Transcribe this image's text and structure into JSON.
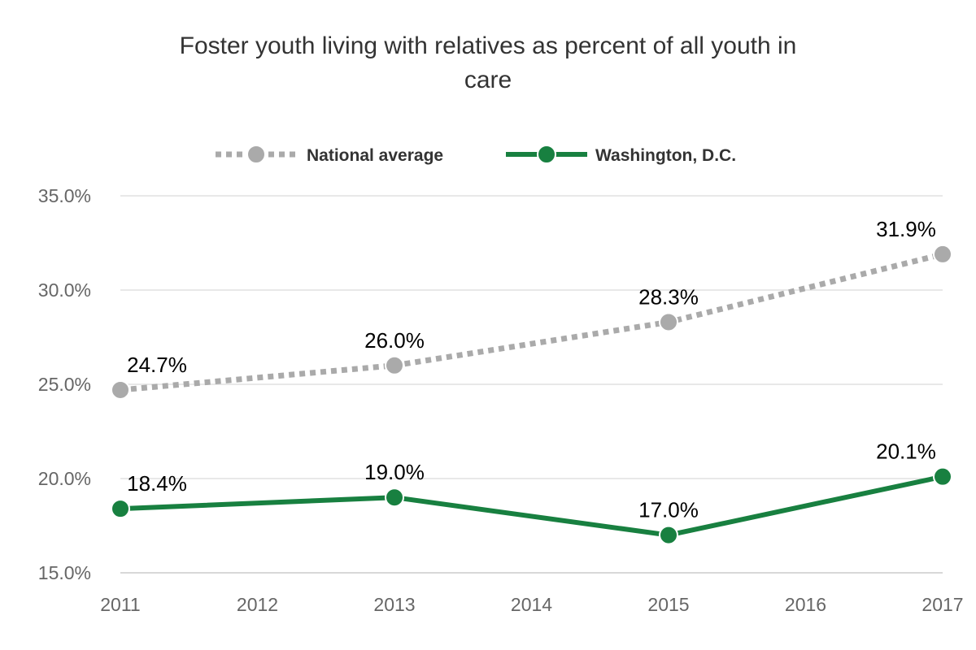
{
  "chart_data": {
    "type": "line",
    "title_lines": [
      "Foster youth living with relatives as percent of all youth in",
      "care"
    ],
    "x": [
      2011,
      2013,
      2015,
      2017
    ],
    "x_ticks": [
      "2011",
      "2012",
      "2013",
      "2014",
      "2015",
      "2016",
      "2017"
    ],
    "y_ticks": [
      "15.0%",
      "20.0%",
      "25.0%",
      "30.0%",
      "35.0%"
    ],
    "ylim": [
      15,
      35
    ],
    "xlim": [
      2011,
      2017
    ],
    "grid": true,
    "legend_placement": "top",
    "series": [
      {
        "name": "National average",
        "values": [
          24.7,
          26.0,
          28.3,
          31.9
        ],
        "labels": [
          "24.7%",
          "26.0%",
          "28.3%",
          "31.9%"
        ],
        "color": "#aaaaaa",
        "style": "dotted"
      },
      {
        "name": "Washington, D.C.",
        "values": [
          18.4,
          19.0,
          17.0,
          20.1
        ],
        "labels": [
          "18.4%",
          "19.0%",
          "17.0%",
          "20.1%"
        ],
        "color": "#188040",
        "style": "solid"
      }
    ]
  }
}
